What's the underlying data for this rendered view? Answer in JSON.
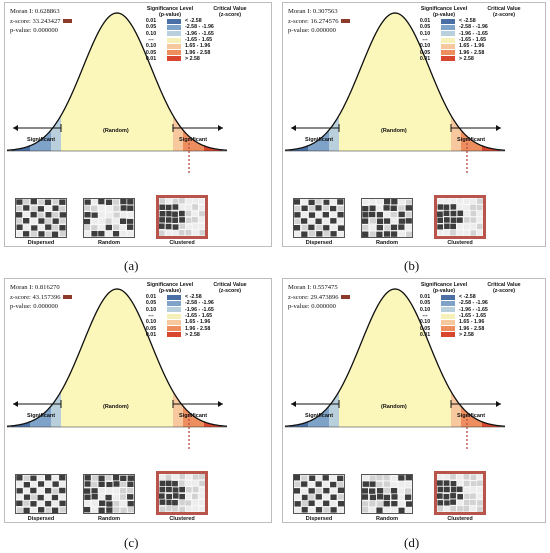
{
  "legend": {
    "sig_header": [
      "Significance Level",
      "(p-value)"
    ],
    "cv_header": [
      "Critical Value",
      "(z-score)"
    ],
    "rows": [
      {
        "p": "0.01",
        "cv": "< -2.58",
        "color": "#4a6fa5"
      },
      {
        "p": "0.05",
        "cv": "-2.58 - -1.96",
        "color": "#7fa3c8"
      },
      {
        "p": "0.10",
        "cv": "-1.96 - -1.65",
        "color": "#b9cfdc"
      },
      {
        "p": "---",
        "cv": "-1.65 - 1.65",
        "color": "#f4f0b8"
      },
      {
        "p": "0.10",
        "cv": "1.65 - 1.96",
        "color": "#f7c89e"
      },
      {
        "p": "0.05",
        "cv": "1.96 - 2.58",
        "color": "#ee8e5e"
      },
      {
        "p": "0.01",
        "cv": "> 2.58",
        "color": "#d9462f"
      }
    ]
  },
  "labels": {
    "significant": "Significant",
    "random": "(Random)",
    "dispersed": "Dispersed",
    "random_thumb": "Random",
    "clustered": "Clustered"
  },
  "panels": [
    {
      "moran": "Moran I: 0.628863",
      "zscore": "z-score: 33.243427",
      "pvalue": "p-value: 0.000000",
      "caption": "(a)"
    },
    {
      "moran": "Moran I: 0.307563",
      "zscore": "z-score: 16.274576",
      "pvalue": "p-value: 0.000000",
      "caption": "(b)"
    },
    {
      "moran": "Moran I: 0.816270",
      "zscore": "z-score: 43.157396",
      "pvalue": "p-value: 0.000000",
      "caption": "(c)"
    },
    {
      "moran": "Moran I: 0.557475",
      "zscore": "z-score: 29.473896",
      "pvalue": "p-value: 0.000000",
      "caption": "(d)"
    }
  ],
  "colors": {
    "curve_fill": "#fbf6b9",
    "neg_strong": "#4a6fa5",
    "neg_mid": "#7fa3c8",
    "neg_weak": "#b9cfdc",
    "pos_weak": "#f7c89e",
    "pos_mid": "#ee8e5e",
    "pos_strong": "#d9462f",
    "cluster_border": "#b8544a"
  }
}
